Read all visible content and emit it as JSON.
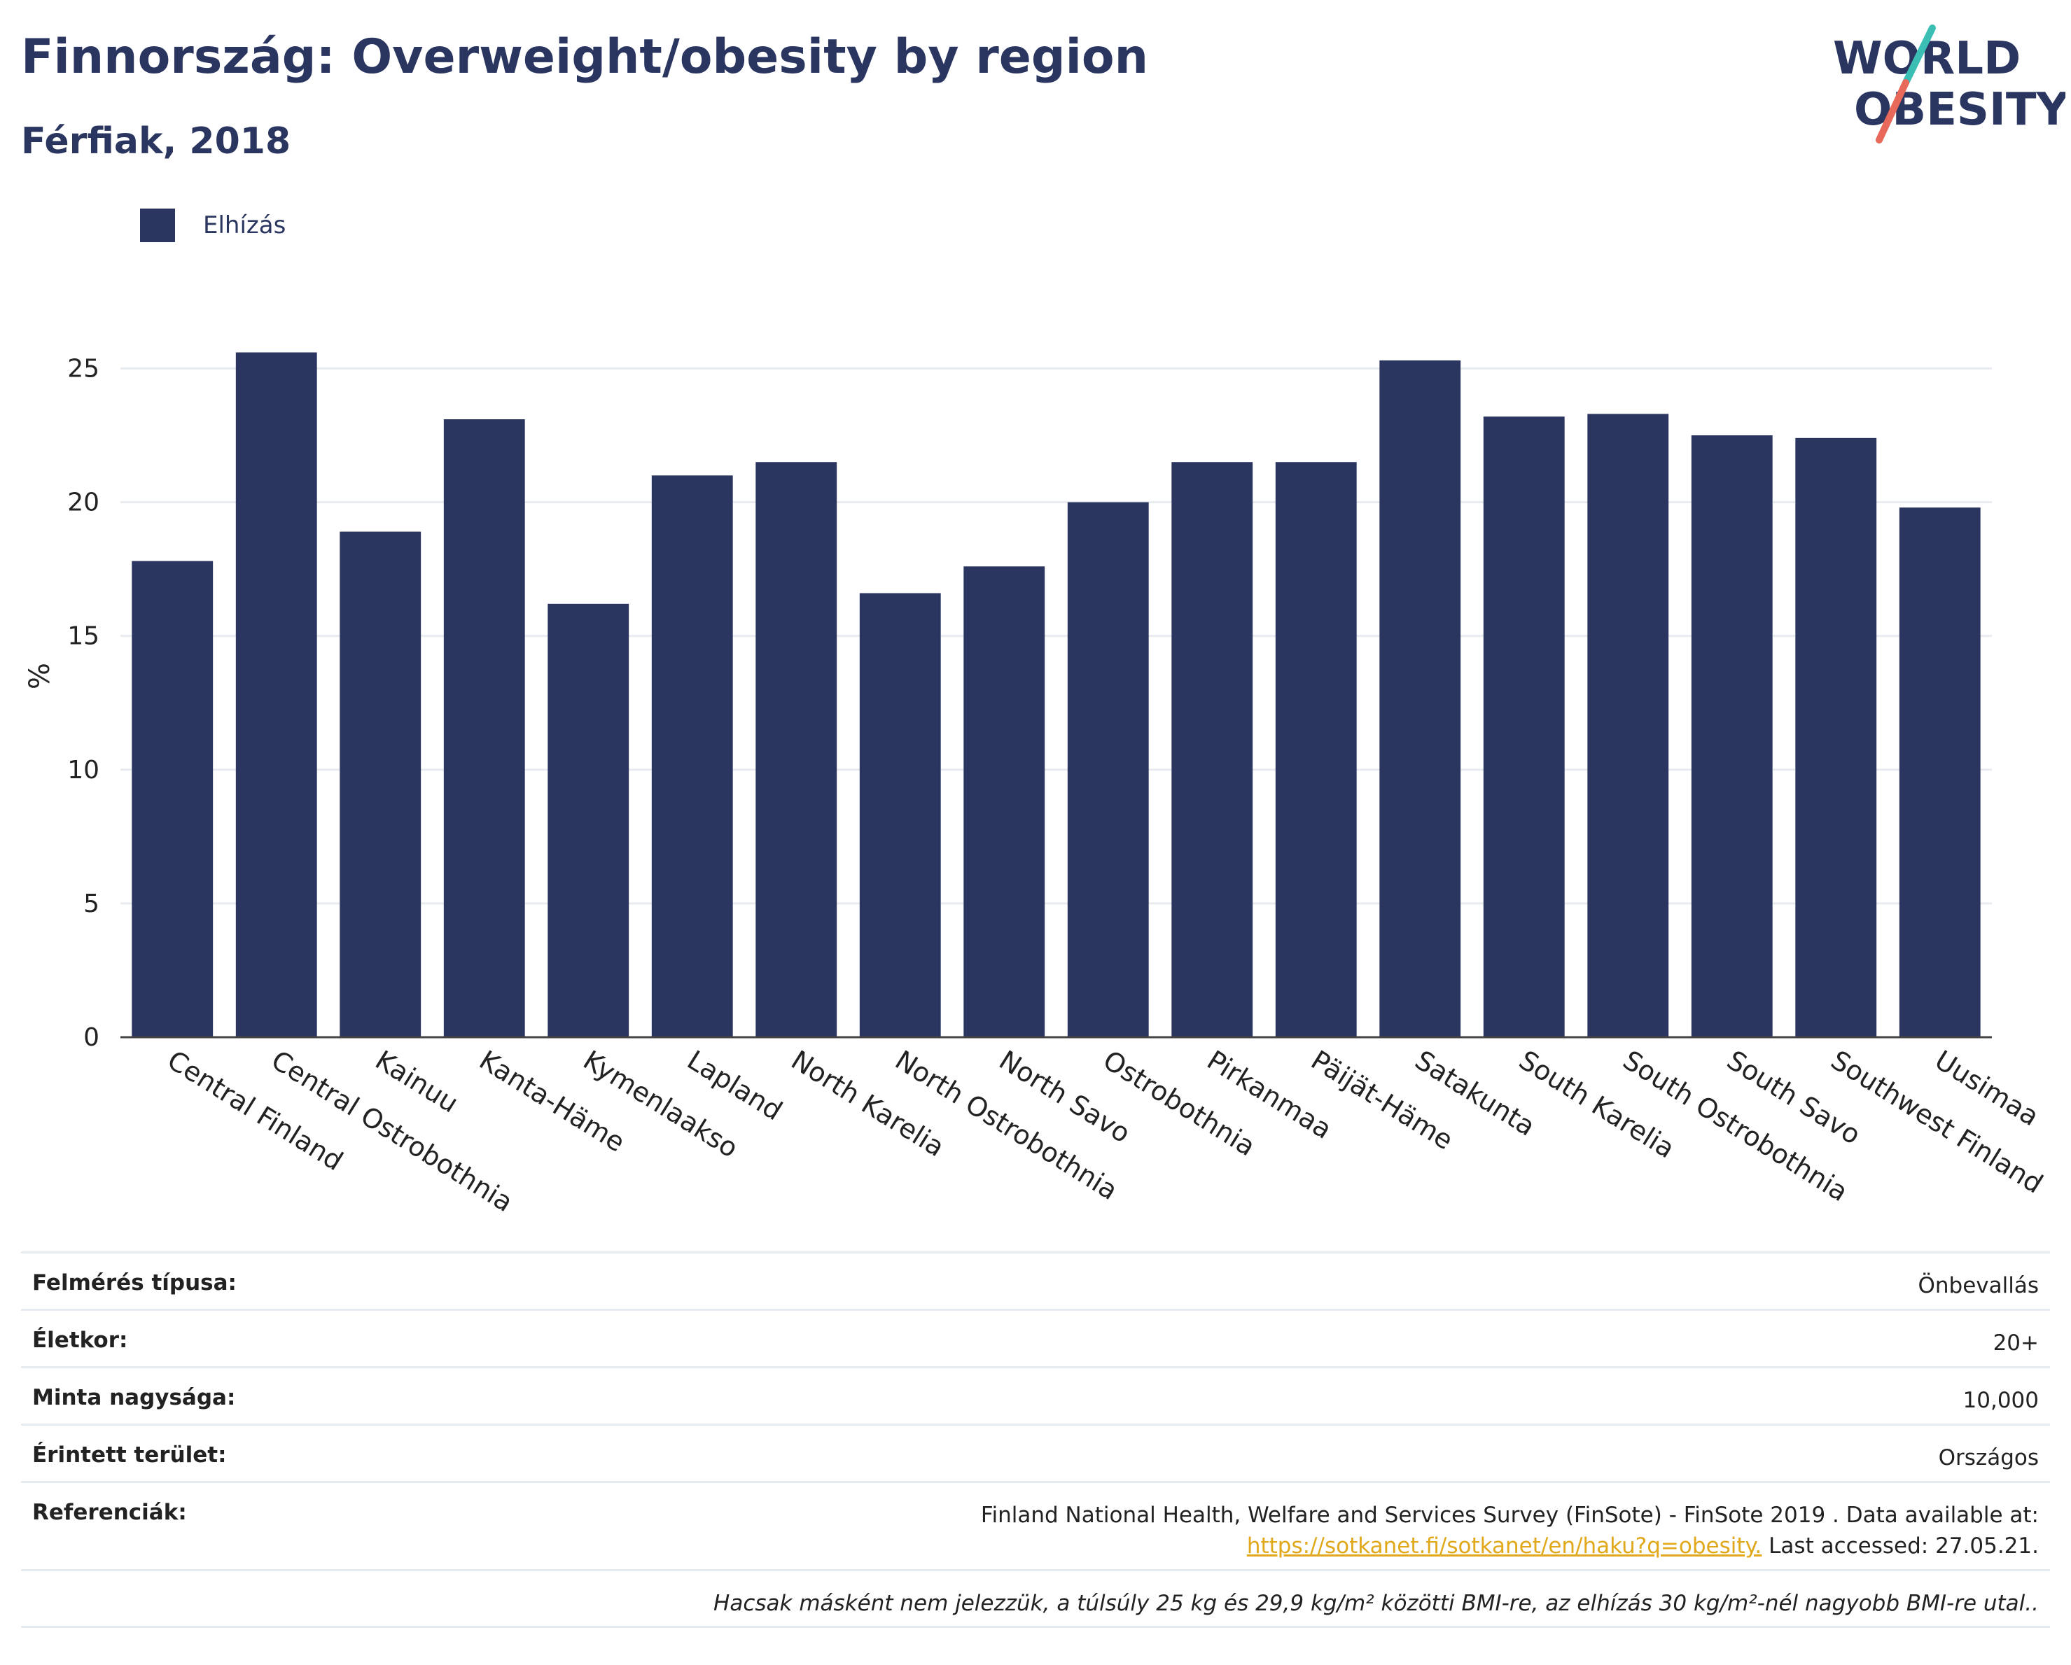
{
  "header": {
    "title": "Finnország: Overweight/obesity by region",
    "subtitle": "Férfiak, 2018"
  },
  "logo": {
    "line1": "WORLD",
    "line2": "OBESITY",
    "colors": {
      "text": "#2a3560",
      "slash_top": "#3bbfb4",
      "slash_bottom": "#e8685a"
    }
  },
  "legend": {
    "label": "Elhízás",
    "color": "#2a3560"
  },
  "chart_data": {
    "type": "bar",
    "ylabel": "%",
    "ylim": [
      0,
      27
    ],
    "yticks": [
      0,
      5,
      10,
      15,
      20,
      25
    ],
    "grid": true,
    "bar_color": "#2a3560",
    "categories": [
      "Central Finland",
      "Central Ostrobothnia",
      "Kainuu",
      "Kanta-Häme",
      "Kymenlaakso",
      "Lapland",
      "North Karelia",
      "North Ostrobothnia",
      "North Savo",
      "Ostrobothnia",
      "Pirkanmaa",
      "Päijät-Häme",
      "Satakunta",
      "South Karelia",
      "South Ostrobothnia",
      "South Savo",
      "Southwest Finland",
      "Uusimaa"
    ],
    "series": [
      {
        "name": "Elhízás",
        "values": [
          17.8,
          25.6,
          18.9,
          23.1,
          16.2,
          21.0,
          21.5,
          16.6,
          17.6,
          20.0,
          21.5,
          21.5,
          25.3,
          23.2,
          23.3,
          22.5,
          22.4,
          19.8
        ]
      }
    ]
  },
  "info": {
    "rows": [
      {
        "label": "Felmérés típusa:",
        "value": "Önbevallás"
      },
      {
        "label": "Életkor:",
        "value": "20+"
      },
      {
        "label": "Minta nagysága:",
        "value": "10,000"
      },
      {
        "label": "Érintett terület:",
        "value": "Országos"
      }
    ],
    "references": {
      "label": "Referenciák:",
      "text1": "Finland National Health, Welfare and Services Survey (FinSote) - FinSote 2019 . Data available at:",
      "link": "https://sotkanet.fi/sotkanet/en/haku?q=obesity.",
      "text2": " Last accessed: 27.05.21."
    },
    "footnote": "Hacsak másként nem jelezzük, a túlsúly 25 kg és 29,9 kg/m² közötti BMI-re, az elhízás 30 kg/m²-nél nagyobb BMI-re utal.."
  }
}
